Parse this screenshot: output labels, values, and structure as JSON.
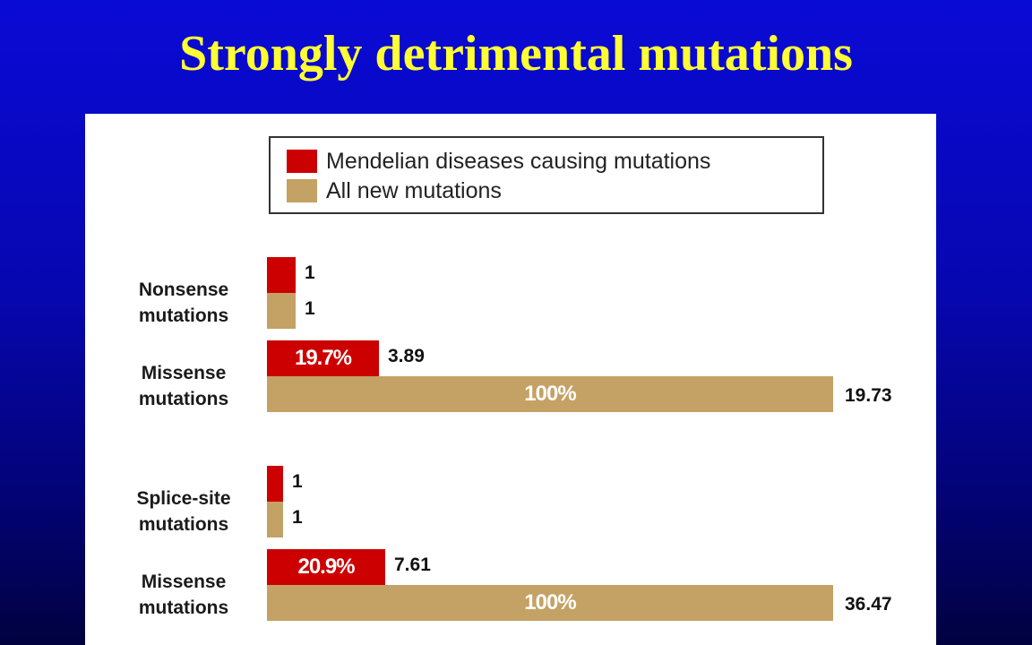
{
  "title": "Strongly detrimental mutations",
  "colors": {
    "mendelian": "#cc0000",
    "all_new": "#c4a265",
    "background": "#0707b0",
    "title": "#ffff33"
  },
  "chart_data": {
    "type": "bar",
    "orientation": "horizontal",
    "legend": {
      "position": "top",
      "entries": [
        "Mendelian diseases causing mutations",
        "All new mutations"
      ]
    },
    "series": [
      {
        "name": "Mendelian diseases causing mutations",
        "color": "#cc0000"
      },
      {
        "name": "All new mutations",
        "color": "#c4a265"
      }
    ],
    "groups": [
      {
        "category": "Nonsense mutations",
        "label_lines": [
          "Nonsense",
          "mutations"
        ],
        "values": [
          1,
          1
        ],
        "bar_labels": [
          "",
          ""
        ]
      },
      {
        "category": "Missense mutations",
        "label_lines": [
          "Missense",
          "mutations"
        ],
        "values": [
          3.89,
          19.73
        ],
        "bar_labels": [
          "19.7%",
          "100%"
        ]
      },
      {
        "category": "Splice-site mutations",
        "label_lines": [
          "Splice-site",
          "mutations"
        ],
        "values": [
          1,
          1
        ],
        "bar_labels": [
          "",
          ""
        ]
      },
      {
        "category": "Missense mutations",
        "label_lines": [
          "Missense",
          "mutations"
        ],
        "values": [
          7.61,
          36.47
        ],
        "bar_labels": [
          "20.9%",
          "100%"
        ]
      }
    ],
    "value_labels": [
      [
        "1",
        "1"
      ],
      [
        "3.89",
        "19.73"
      ],
      [
        "1",
        "1"
      ],
      [
        "7.61",
        "36.47"
      ]
    ],
    "grid": false
  }
}
